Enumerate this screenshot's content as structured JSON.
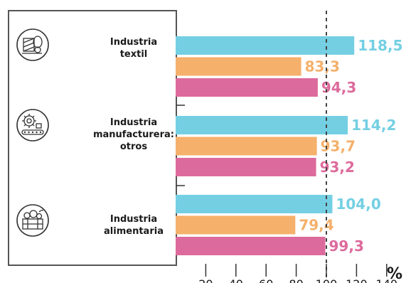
{
  "chart_data": {
    "type": "bar",
    "orientation": "horizontal",
    "categories": [
      [
        "Industria",
        "textil"
      ],
      [
        "Industria",
        "manufacturera:",
        "otros"
      ],
      [
        "Industria",
        "alimentaria"
      ]
    ],
    "category_icons": [
      "textile-roll-icon",
      "gear-conveyor-icon",
      "food-crate-icon"
    ],
    "series": [
      {
        "values": [
          118.5,
          114.2,
          104.0
        ],
        "labels": [
          "118,5",
          "114,2",
          "104,0"
        ],
        "color": "#74cfe3"
      },
      {
        "values": [
          83.3,
          93.7,
          79.4
        ],
        "labels": [
          "83,3",
          "93,7",
          "79,4"
        ],
        "color": "#f5b06b"
      },
      {
        "values": [
          94.3,
          93.2,
          99.3
        ],
        "labels": [
          "94,3",
          "93,2",
          "99,3"
        ],
        "color": "#dd6a9c"
      }
    ],
    "xlim": [
      0,
      140
    ],
    "x_ticks": [
      20,
      40,
      60,
      80,
      100,
      120,
      140
    ],
    "x_tick_labels": [
      "20",
      "40",
      "60",
      "80",
      "100",
      "120",
      "140"
    ],
    "x_unit": "%",
    "reference_line": 100,
    "grid": false
  }
}
